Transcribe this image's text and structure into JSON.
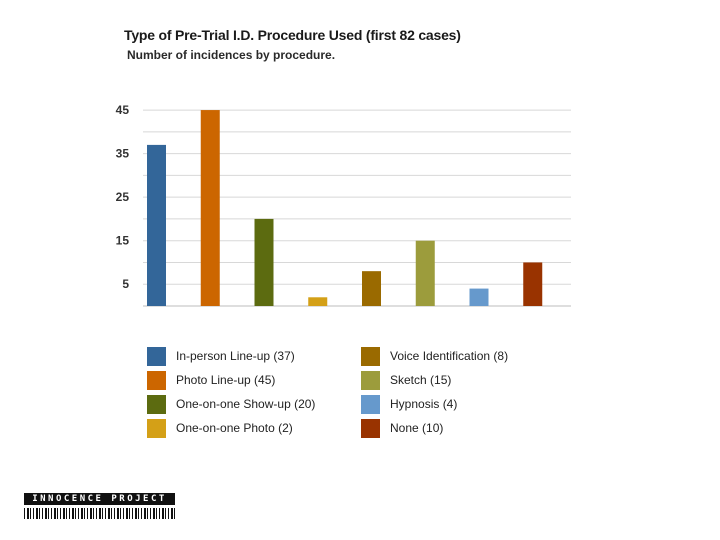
{
  "chart_data": {
    "type": "bar",
    "title": "Type of Pre-Trial I.D. Procedure Used (first 82 cases)",
    "subtitle": "Number of incidences by procedure.",
    "xlabel": "",
    "ylabel": "",
    "ylim": [
      0,
      48
    ],
    "yticks": [
      5,
      15,
      25,
      35,
      45
    ],
    "grid": true,
    "categories": [
      "In-person Line-up",
      "Photo Line-up",
      "One-on-one Show-up",
      "One-on-one Photo",
      "Voice Identification",
      "Sketch",
      "Hypnosis",
      "None"
    ],
    "values": [
      37,
      45,
      20,
      2,
      8,
      15,
      4,
      10
    ],
    "colors": [
      "#336699",
      "#cc6600",
      "#5c6b10",
      "#d4a017",
      "#9a6a00",
      "#9c9c3c",
      "#6699cc",
      "#993300"
    ],
    "legend": [
      {
        "label": "In-person Line-up (37)",
        "color": "#336699"
      },
      {
        "label": "Photo Line-up (45)",
        "color": "#cc6600"
      },
      {
        "label": "One-on-one Show-up (20)",
        "color": "#5c6b10"
      },
      {
        "label": "One-on-one Photo (2)",
        "color": "#d4a017"
      },
      {
        "label": "Voice Identification (8)",
        "color": "#9a6a00"
      },
      {
        "label": "Sketch (15)",
        "color": "#9c9c3c"
      },
      {
        "label": "Hypnosis (4)",
        "color": "#6699cc"
      },
      {
        "label": "None (10)",
        "color": "#993300"
      }
    ]
  },
  "logo": {
    "text": "INNOCENCE PROJECT"
  }
}
